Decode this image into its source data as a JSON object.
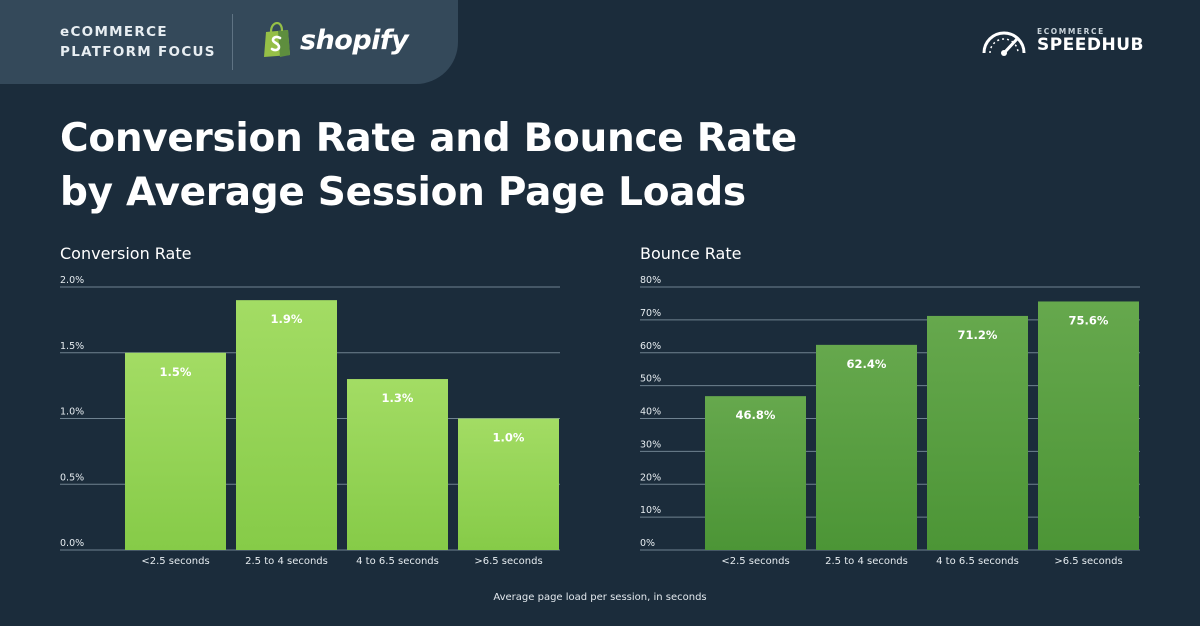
{
  "header": {
    "focus_line1": "eCOMMERCE",
    "focus_line2": "PLATFORM FOCUS",
    "platform_name": "shopify",
    "brand_small": "ECOMMERCE",
    "brand_big": "SPEEDHUB"
  },
  "title_line1": "Conversion Rate and Bounce Rate",
  "title_line2": "by Average Session Page Loads",
  "footnote": "Average page load per session, in seconds",
  "colors": {
    "background": "#1b2c3b",
    "conversion_bar_top": "#a3dc64",
    "conversion_bar_bottom": "#86cb48",
    "bounce_bar_top": "#66a84d",
    "bounce_bar_bottom": "#4c9536",
    "grid": "#6f8290",
    "shopify_green": "#95bf47"
  },
  "chart_data": [
    {
      "type": "bar",
      "title": "Conversion Rate",
      "categories": [
        "<2.5 seconds",
        "2.5 to 4 seconds",
        "4 to 6.5 seconds",
        ">6.5 seconds"
      ],
      "values": [
        1.5,
        1.9,
        1.3,
        1.0
      ],
      "value_labels": [
        "1.5%",
        "1.9%",
        "1.3%",
        "1.0%"
      ],
      "ylim": [
        0,
        2.0
      ],
      "yticks": [
        0,
        0.5,
        1.0,
        1.5,
        2.0
      ],
      "ytick_labels": [
        "0.0%",
        "0.5%",
        "1.0%",
        "1.5%",
        "2.0%"
      ],
      "grid": true,
      "xlabel": "Average page load per session, in seconds"
    },
    {
      "type": "bar",
      "title": "Bounce Rate",
      "categories": [
        "<2.5 seconds",
        "2.5 to 4 seconds",
        "4 to 6.5 seconds",
        ">6.5 seconds"
      ],
      "values": [
        46.8,
        62.4,
        71.2,
        75.6
      ],
      "value_labels": [
        "46.8%",
        "62.4%",
        "71.2%",
        "75.6%"
      ],
      "ylim": [
        0,
        80
      ],
      "yticks": [
        0,
        10,
        20,
        30,
        40,
        50,
        60,
        70,
        80
      ],
      "ytick_labels": [
        "0%",
        "10%",
        "20%",
        "30%",
        "40%",
        "50%",
        "60%",
        "70%",
        "80%"
      ],
      "grid": true,
      "xlabel": "Average page load per session, in seconds"
    }
  ]
}
